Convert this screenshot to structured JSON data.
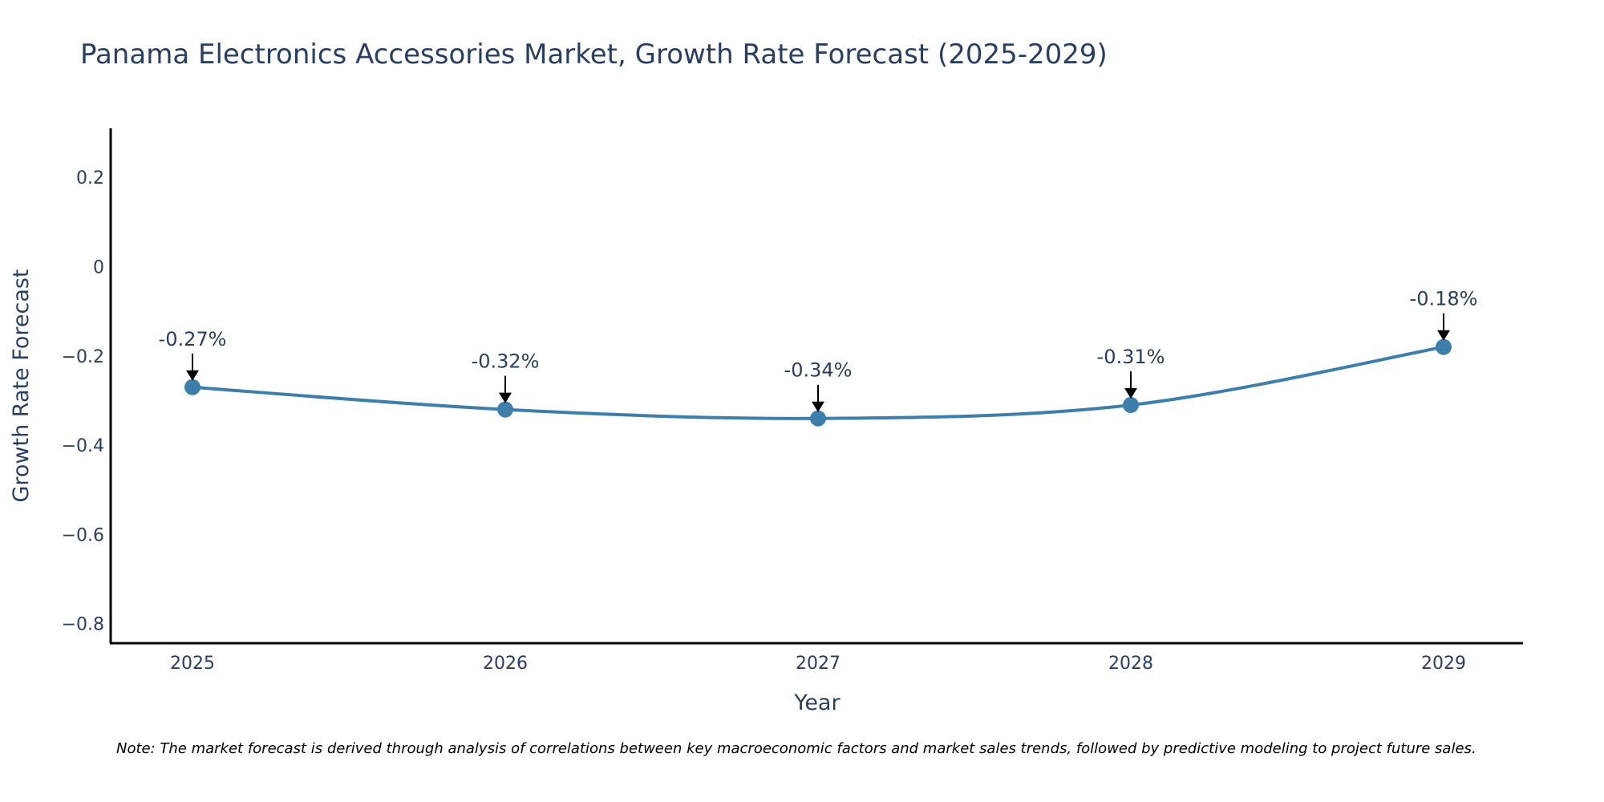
{
  "chart_data": {
    "type": "line",
    "title": "Panama Electronics Accessories Market, Growth Rate Forecast (2025-2029)",
    "xlabel": "Year",
    "ylabel": "Growth Rate Forecast",
    "categories": [
      "2025",
      "2026",
      "2027",
      "2028",
      "2029"
    ],
    "series": [
      {
        "name": "Growth Rate Forecast",
        "values": [
          -0.27,
          -0.32,
          -0.34,
          -0.31,
          -0.18
        ]
      }
    ],
    "data_labels": [
      "-0.27%",
      "-0.32%",
      "-0.34%",
      "-0.31%",
      "-0.18%"
    ],
    "ylim": [
      -0.84,
      0.31
    ],
    "yticks": [
      0.2,
      0,
      -0.2,
      -0.4,
      -0.6,
      -0.8
    ],
    "ytick_labels": [
      "0.2",
      "0",
      "−0.2",
      "−0.4",
      "−0.6",
      "−0.8"
    ],
    "grid": false,
    "line_color": "#3d7eab",
    "marker_color": "#3d7eab",
    "note": "Note: The market forecast is derived through analysis of correlations between key macroeconomic factors and market sales trends, followed by predictive modeling to project future sales."
  }
}
